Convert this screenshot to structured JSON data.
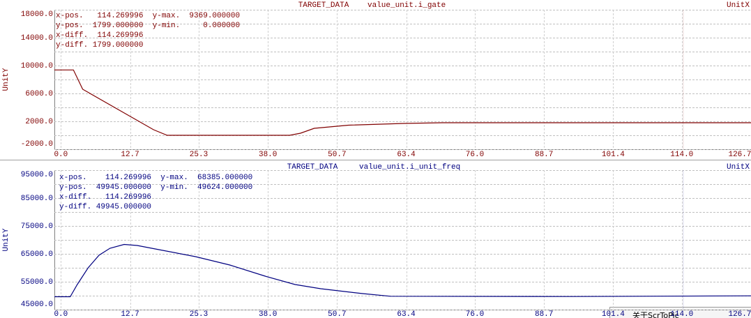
{
  "chart_data": [
    {
      "type": "line",
      "title": "TARGET_DATA",
      "subtitle": "value_unit.i_gate",
      "x_label": "UnitX",
      "y_label": "UnitY",
      "readout": [
        "x-pos.   114.269996  y-max.  9369.000000",
        "y-pos.  1799.000000  y-min.     0.000000",
        "x-diff.  114.269996",
        "y-diff. 1799.000000"
      ],
      "x": [
        -1.2,
        2.3,
        4.0,
        17.0,
        19.5,
        42,
        44,
        46.5,
        52.8,
        63,
        70,
        126.7
      ],
      "series": [
        {
          "color": "#800000",
          "values": [
            9369,
            9369,
            6600,
            800,
            0,
            0,
            300,
            1000,
            1450,
            1700,
            1800,
            1799
          ]
        }
      ],
      "cursor_x": 114.269996,
      "xlim": [
        -1.2,
        126.7
      ],
      "xticks": [
        {
          "value": 0,
          "label": "0.0"
        },
        12.7,
        25.3,
        {
          "value": 38,
          "label": "38.0"
        },
        50.7,
        63.4,
        {
          "value": 76,
          "label": "76.0"
        },
        88.7,
        101.4,
        {
          "value": 114,
          "label": "114.0"
        },
        126.7
      ],
      "ylim": [
        -2000,
        18000
      ],
      "yticks": [
        {
          "value": -2000,
          "label": "-2000.0"
        },
        {
          "value": 2000,
          "label": "2000.0"
        },
        {
          "value": 6000,
          "label": "6000.0"
        },
        {
          "value": 10000,
          "label": "10000.0"
        },
        {
          "value": 14000,
          "label": "14000.0"
        },
        {
          "value": 18000,
          "label": "18000.0"
        }
      ],
      "grid": true
    },
    {
      "type": "line",
      "title": "TARGET_DATA",
      "subtitle": "value_unit.i_unit_freq",
      "x_label": "UnitX",
      "y_label": "UnitY",
      "readout": [
        "x-pos.    114.269996  y-max.  68385.000000",
        "y-pos.  49945.000000  y-min.  49624.000000",
        "x-diff.   114.269996",
        "y-diff. 49945.000000"
      ],
      "x": [
        -1.2,
        1.7,
        3,
        5,
        7,
        9,
        11.6,
        14,
        18,
        24.7,
        31,
        37.5,
        43,
        47.7,
        55.4,
        60.5,
        93.7,
        126.7
      ],
      "series": [
        {
          "color": "#000080",
          "values": [
            49624,
            49624,
            54000,
            60000,
            64500,
            67000,
            68385,
            68000,
            66500,
            64000,
            61000,
            57000,
            54000,
            52500,
            50750,
            49800,
            49700,
            49945
          ]
        }
      ],
      "cursor_x": 114.269996,
      "xlim": [
        -1.2,
        126.7
      ],
      "xticks": [
        {
          "value": 0,
          "label": "0.0"
        },
        12.7,
        25.3,
        {
          "value": 38,
          "label": "38.0"
        },
        50.7,
        63.4,
        {
          "value": 76,
          "label": "76.0"
        },
        88.7,
        101.4,
        {
          "value": 114,
          "label": "114.0"
        },
        126.7
      ],
      "ylim": [
        45000,
        95000
      ],
      "yticks": [
        {
          "value": 45000,
          "label": "45000.0"
        },
        {
          "value": 55000,
          "label": "55000.0"
        },
        {
          "value": 65000,
          "label": "65000.0"
        },
        {
          "value": 75000,
          "label": "75000.0"
        },
        {
          "value": 85000,
          "label": "85000.0"
        },
        {
          "value": 95000,
          "label": "95000.0"
        }
      ],
      "grid": true
    }
  ],
  "popup_menu": {
    "items": [
      "关于ScrToPic"
    ]
  }
}
